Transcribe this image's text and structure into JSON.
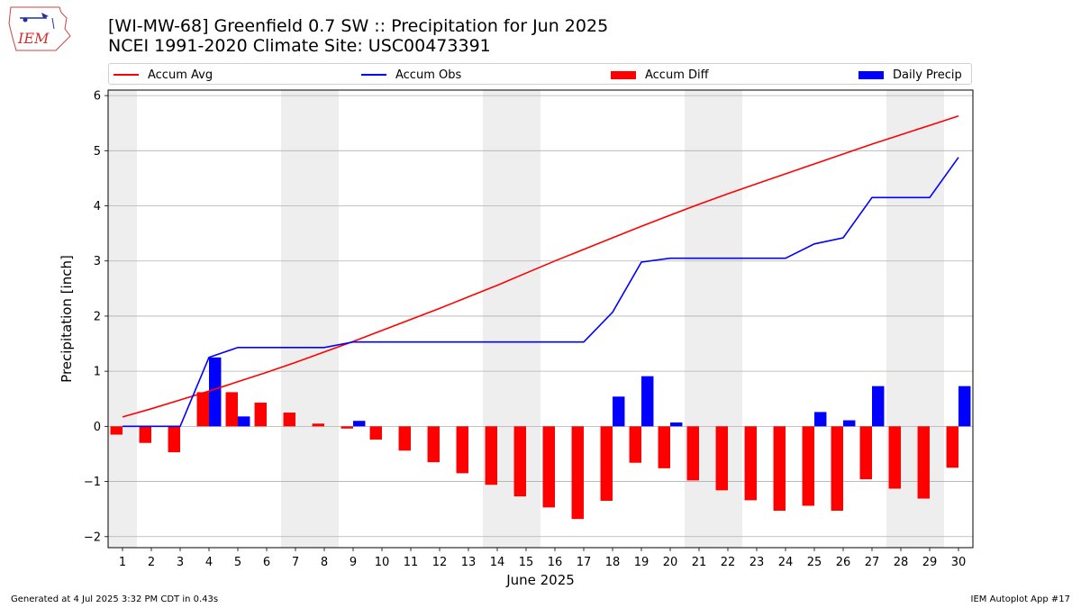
{
  "title_line1": "[WI-MW-68] Greenfield 0.7 SW :: Precipitation for Jun 2025",
  "title_line2": "NCEI 1991-2020 Climate Site: USC00473391",
  "logo_text": "IEM",
  "footer_left": "Generated at 4 Jul 2025 3:32 PM CDT in 0.43s",
  "footer_right": "IEM Autoplot App #17",
  "legend": [
    {
      "label": "Accum Avg",
      "kind": "line",
      "color": "#ff0000"
    },
    {
      "label": "Accum Obs",
      "kind": "line",
      "color": "#0000ff"
    },
    {
      "label": "Accum Diff",
      "kind": "bar",
      "color": "#ff0000"
    },
    {
      "label": "Daily Precip",
      "kind": "bar",
      "color": "#0000ff"
    }
  ],
  "chart_data": {
    "type": "bar",
    "xlabel": "June 2025",
    "ylabel": "Precipitation [inch]",
    "ylim": [
      -2.2,
      6.1
    ],
    "yticks": [
      -2,
      -1,
      0,
      1,
      2,
      3,
      4,
      5,
      6
    ],
    "ytick_labels": [
      "−2",
      "−1",
      "0",
      "1",
      "2",
      "3",
      "4",
      "5",
      "6"
    ],
    "grid": true,
    "legend_position": "top",
    "weekend_shading_days": [
      1,
      7,
      8,
      14,
      15,
      21,
      22,
      28,
      29
    ],
    "categories": [
      "1",
      "2",
      "3",
      "4",
      "5",
      "6",
      "7",
      "8",
      "9",
      "10",
      "11",
      "12",
      "13",
      "14",
      "15",
      "16",
      "17",
      "18",
      "19",
      "20",
      "21",
      "22",
      "23",
      "24",
      "25",
      "26",
      "27",
      "28",
      "29",
      "30"
    ],
    "series": [
      {
        "name": "Accum Avg",
        "type": "line",
        "color": "#ff0000",
        "values": [
          0.17,
          0.32,
          0.48,
          0.64,
          0.81,
          0.98,
          1.16,
          1.35,
          1.54,
          1.74,
          1.94,
          2.14,
          2.35,
          2.56,
          2.78,
          3.0,
          3.21,
          3.42,
          3.63,
          3.83,
          4.03,
          4.22,
          4.4,
          4.58,
          4.76,
          4.94,
          5.12,
          5.29,
          5.46,
          5.63
        ]
      },
      {
        "name": "Accum Obs",
        "type": "line",
        "color": "#0000ff",
        "values": [
          0.0,
          0.0,
          0.0,
          1.25,
          1.43,
          1.43,
          1.43,
          1.43,
          1.53,
          1.53,
          1.53,
          1.53,
          1.53,
          1.53,
          1.53,
          1.53,
          1.53,
          2.07,
          2.98,
          3.05,
          3.05,
          3.05,
          3.05,
          3.05,
          3.31,
          3.42,
          4.15,
          4.15,
          4.15,
          4.88
        ]
      },
      {
        "name": "Accum Diff",
        "type": "bar",
        "color": "#ff0000",
        "values": [
          -0.15,
          -0.3,
          -0.47,
          0.62,
          0.62,
          0.43,
          0.25,
          0.05,
          -0.04,
          -0.24,
          -0.44,
          -0.65,
          -0.85,
          -1.06,
          -1.27,
          -1.47,
          -1.68,
          -1.35,
          -0.66,
          -0.76,
          -0.98,
          -1.16,
          -1.34,
          -1.53,
          -1.44,
          -1.53,
          -0.96,
          -1.13,
          -1.31,
          -0.75
        ]
      },
      {
        "name": "Daily Precip",
        "type": "bar",
        "color": "#0000ff",
        "values": [
          0.0,
          0.0,
          0.0,
          1.25,
          0.18,
          0.0,
          0.0,
          0.0,
          0.1,
          0.0,
          0.0,
          0.0,
          0.0,
          0.0,
          0.0,
          0.0,
          0.0,
          0.54,
          0.91,
          0.07,
          0.0,
          0.0,
          0.0,
          0.0,
          0.26,
          0.11,
          0.73,
          0.0,
          0.0,
          0.73
        ]
      }
    ]
  }
}
